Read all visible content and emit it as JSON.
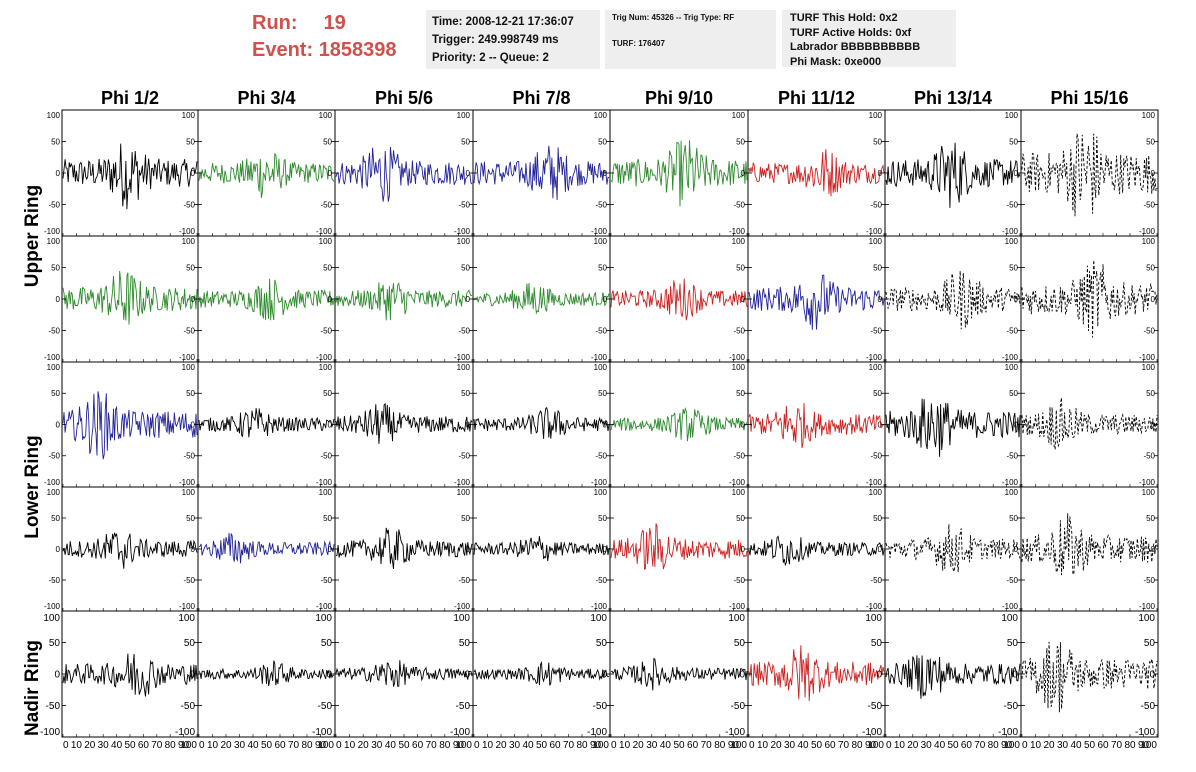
{
  "header": {
    "run_label": "Run:",
    "run_value": "19",
    "event_label": "Event:",
    "event_value": "1858398",
    "time": "Time: 2008-12-21 17:36:07",
    "trigger": "Trigger: 249.998749 ms",
    "priority": "Priority: 2 -- Queue: 2",
    "trig_num": "Trig Num: 45326 -- Trig Type: RF",
    "turf": "TURF: 176407",
    "turf_this_hold": "TURF This Hold: 0x2",
    "turf_active_holds": "TURF Active Holds: 0xf",
    "labrador": "Labrador BBBBBBBBBB",
    "phi_mask": "Phi Mask: 0xe000"
  },
  "colors": {
    "black": "#000000",
    "green": "#2e8b2e",
    "blue": "#23239b",
    "red": "#cc2222",
    "header_red": "#d0504c"
  },
  "chart_data": {
    "type": "line",
    "columns": [
      "Phi 1/2",
      "Phi 3/4",
      "Phi 5/6",
      "Phi 7/8",
      "Phi 9/10",
      "Phi 11/12",
      "Phi 13/14",
      "Phi 15/16"
    ],
    "ring_labels": [
      "Upper Ring",
      "Lower Ring",
      "Nadir Ring"
    ],
    "xlim": [
      0,
      100
    ],
    "ylim": [
      -100,
      100
    ],
    "x_ticks": [
      "0",
      "10",
      "20",
      "30",
      "40",
      "50",
      "60",
      "70",
      "80",
      "90",
      "100"
    ],
    "y_ticks": [
      "100",
      "50",
      "0",
      "-50",
      "-100"
    ],
    "rows": [
      {
        "colors": [
          "black",
          "green",
          "blue",
          "blue",
          "green",
          "red",
          "black",
          "black"
        ],
        "amplitudes": [
          40,
          30,
          35,
          35,
          40,
          30,
          40,
          60
        ],
        "dashed": [
          false,
          false,
          false,
          false,
          false,
          false,
          false,
          true
        ]
      },
      {
        "colors": [
          "green",
          "green",
          "green",
          "green",
          "red",
          "blue",
          "black",
          "black"
        ],
        "amplitudes": [
          35,
          25,
          25,
          20,
          25,
          35,
          35,
          45
        ],
        "dashed": [
          false,
          false,
          false,
          false,
          false,
          false,
          true,
          true
        ]
      },
      {
        "colors": [
          "blue",
          "black",
          "black",
          "black",
          "green",
          "red",
          "black",
          "black"
        ],
        "amplitudes": [
          40,
          20,
          25,
          20,
          20,
          30,
          40,
          30
        ],
        "dashed": [
          false,
          false,
          false,
          false,
          false,
          false,
          false,
          true
        ]
      },
      {
        "colors": [
          "black",
          "blue",
          "black",
          "black",
          "red",
          "black",
          "black",
          "black"
        ],
        "amplitudes": [
          25,
          20,
          25,
          18,
          30,
          20,
          30,
          40
        ],
        "dashed": [
          false,
          false,
          false,
          false,
          false,
          false,
          true,
          true
        ]
      },
      {
        "colors": [
          "black",
          "black",
          "black",
          "black",
          "black",
          "red",
          "black",
          "black"
        ],
        "amplitudes": [
          30,
          15,
          18,
          15,
          18,
          35,
          30,
          45
        ],
        "dashed": [
          false,
          false,
          false,
          false,
          false,
          false,
          false,
          true
        ]
      }
    ]
  }
}
